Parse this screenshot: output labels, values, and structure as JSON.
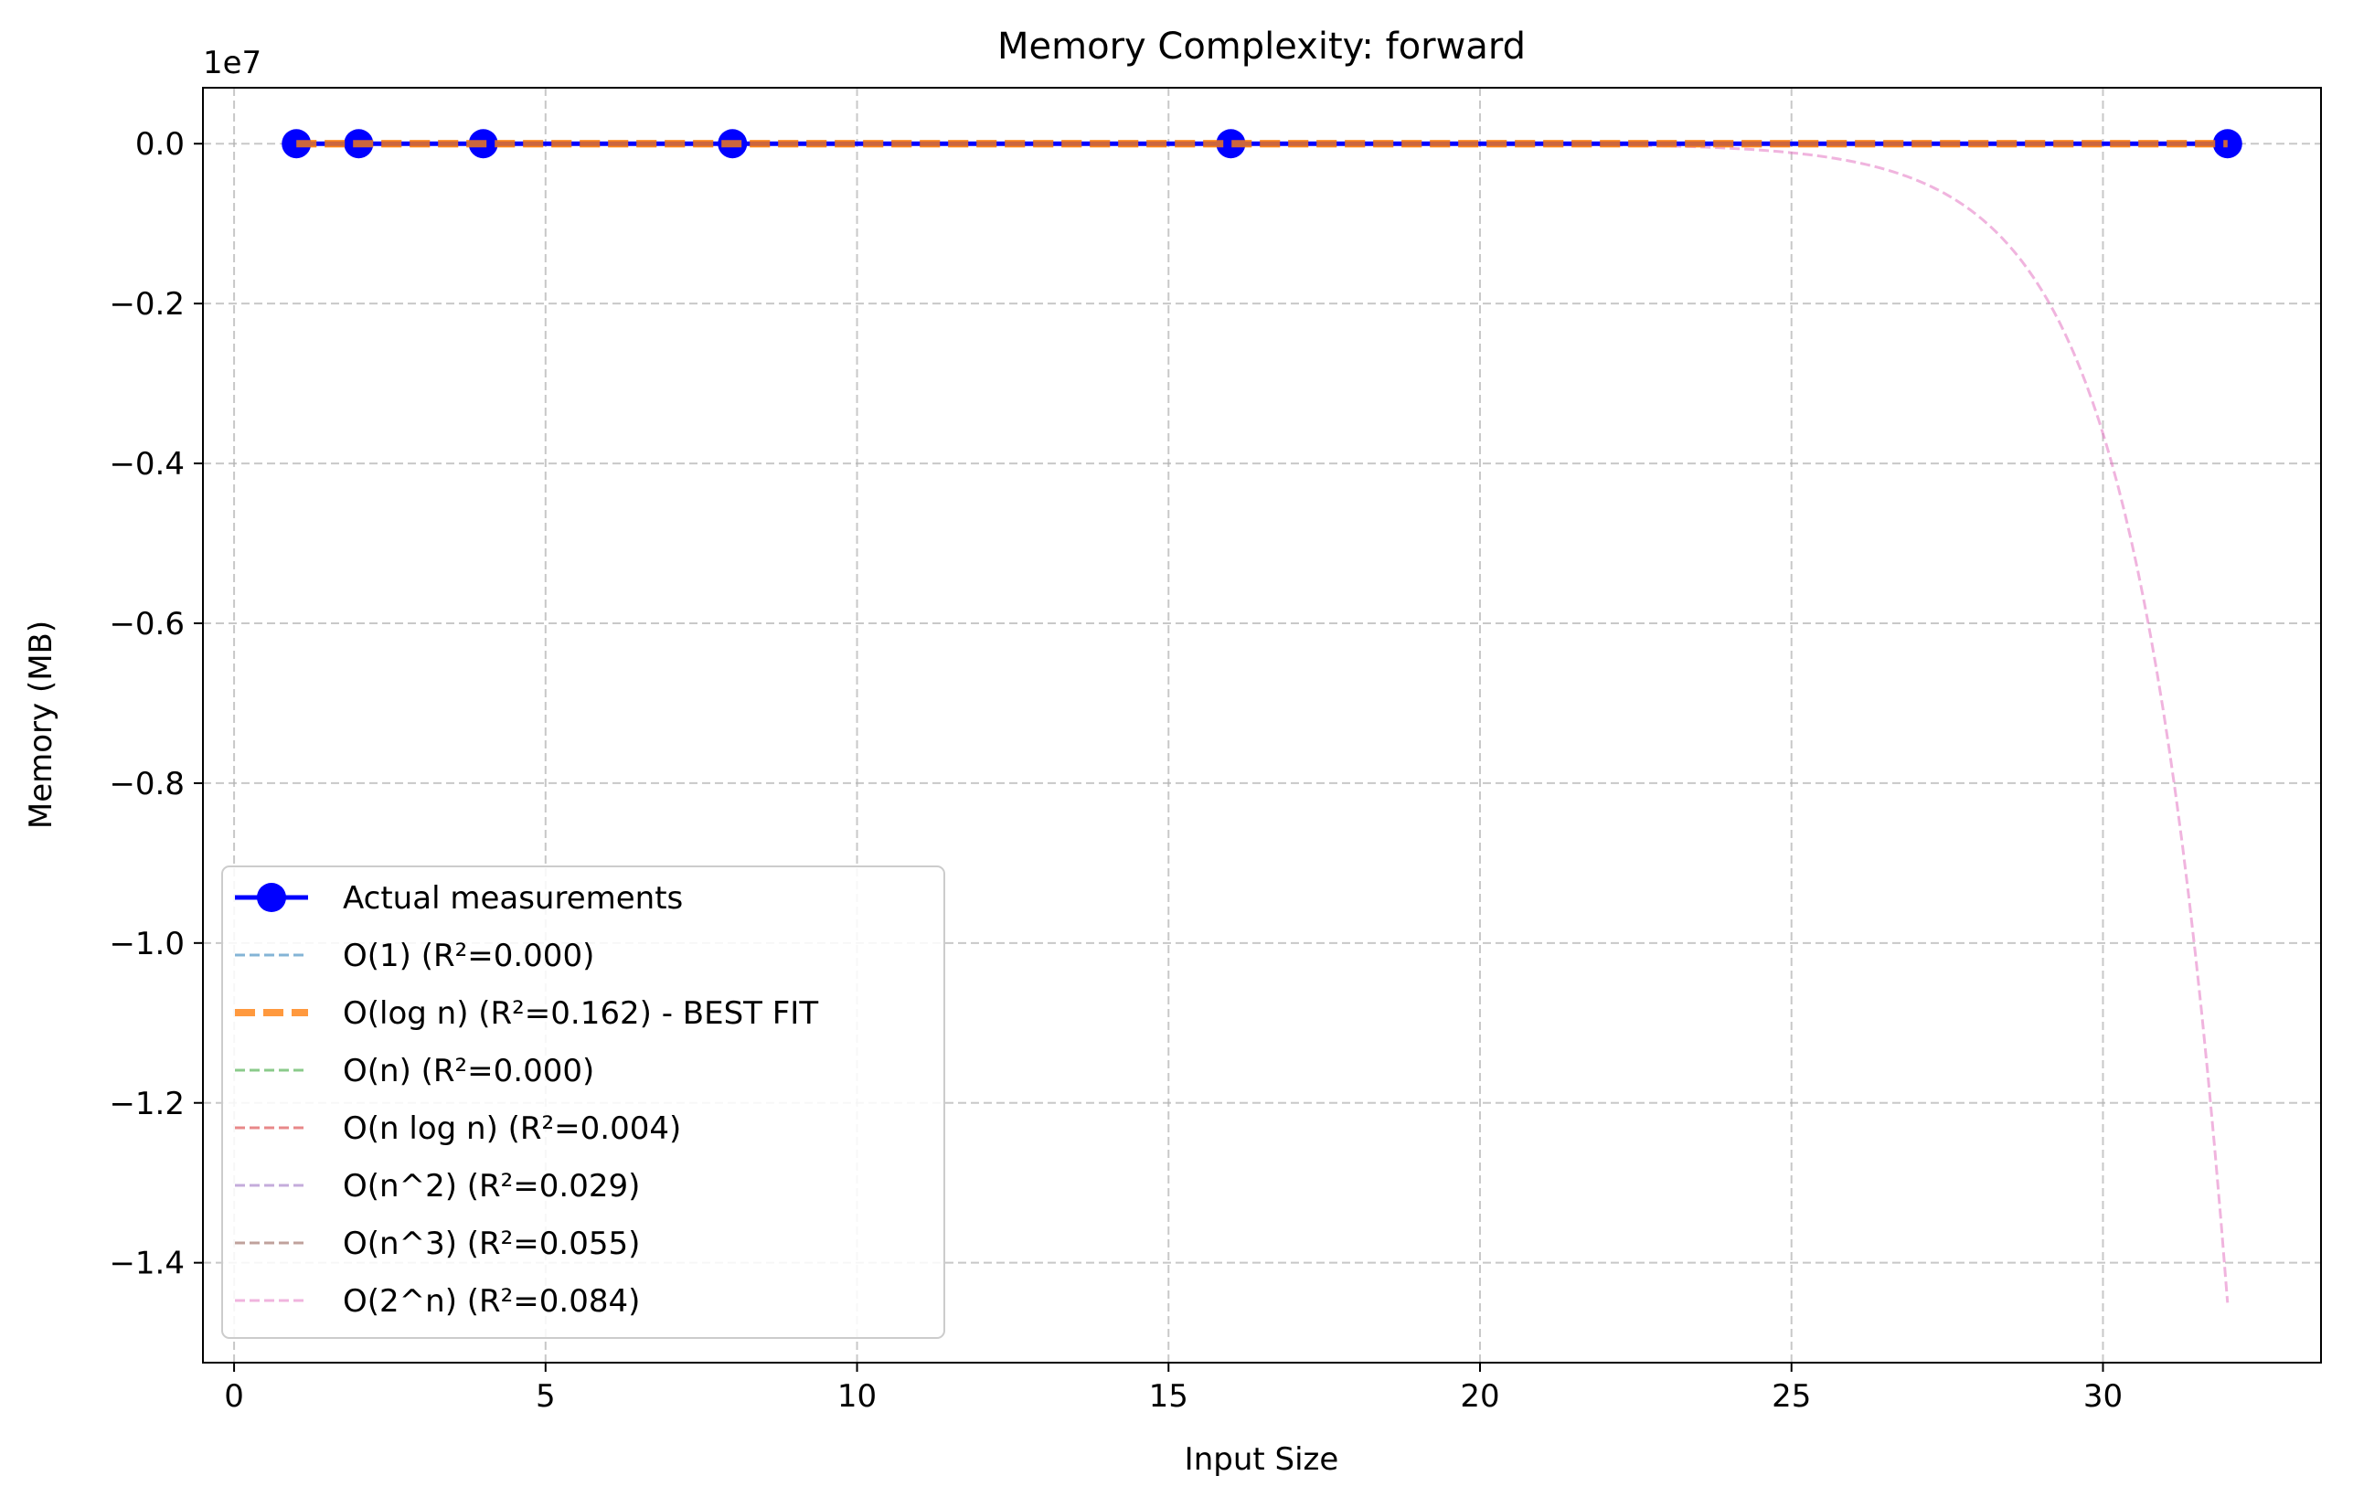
{
  "chart_data": {
    "type": "line",
    "title": "Memory Complexity: forward",
    "xlabel": "Input Size",
    "ylabel": "Memory (MB)",
    "y_offset_label": "1e7",
    "xlim": [
      -0.5,
      33.5
    ],
    "ylim": [
      -1.525,
      0.07
    ],
    "x_ticks": [
      0,
      5,
      10,
      15,
      20,
      25,
      30
    ],
    "x_tick_labels": [
      "0",
      "5",
      "10",
      "15",
      "20",
      "25",
      "30"
    ],
    "y_ticks": [
      0.0,
      -0.2,
      -0.4,
      -0.6,
      -0.8,
      -1.0,
      -1.2,
      -1.4
    ],
    "y_tick_labels": [
      "0.0",
      "−0.2",
      "−0.4",
      "−0.6",
      "−0.8",
      "−1.0",
      "−1.2",
      "−1.4"
    ],
    "grid": true,
    "legend_position": "lower-left",
    "series": [
      {
        "name": "Actual measurements",
        "color": "#0000ff",
        "style": "solid-markers",
        "x": [
          1,
          2,
          4,
          8,
          16,
          32
        ],
        "y": [
          0,
          0,
          0,
          0,
          0,
          0
        ]
      },
      {
        "name": "O(1) (R²=0.000)",
        "color": "#1f77b4",
        "style": "dashed",
        "fit": "const"
      },
      {
        "name": "O(log n) (R²=0.162) - BEST FIT",
        "color": "#ff7f0e",
        "style": "dashed-thick",
        "fit": "log"
      },
      {
        "name": "O(n) (R²=0.000)",
        "color": "#2ca02c",
        "style": "dashed",
        "fit": "linear"
      },
      {
        "name": "O(n log n) (R²=0.004)",
        "color": "#d62728",
        "style": "dashed",
        "fit": "nlogn"
      },
      {
        "name": "O(n^2) (R²=0.029)",
        "color": "#9467bd",
        "style": "dashed",
        "fit": "quadratic"
      },
      {
        "name": "O(n^3) (R²=0.055)",
        "color": "#8c564b",
        "style": "dashed",
        "fit": "cubic"
      },
      {
        "name": "O(2^n) (R²=0.084)",
        "color": "#e377c2",
        "style": "dashed",
        "fit": "exp2",
        "y_at_32": -1.45
      }
    ]
  }
}
